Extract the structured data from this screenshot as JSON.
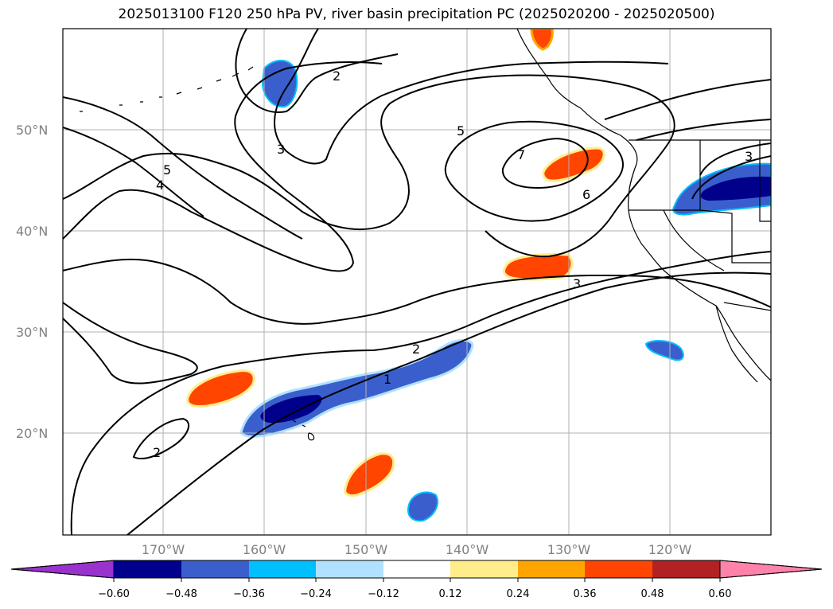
{
  "title": "2025013100 F120 250 hPa PV, river basin precipitation PC (2025020200 - 2025020500)",
  "map": {
    "lat_labels": [
      "50°N",
      "40°N",
      "30°N",
      "20°N"
    ],
    "lon_labels": [
      "170°W",
      "160°W",
      "150°W",
      "140°W",
      "130°W",
      "120°W"
    ],
    "contour_labels": [
      "2",
      "3",
      "5",
      "4",
      "7",
      "6",
      "3",
      "2",
      "1",
      "2",
      "3"
    ],
    "colors": {
      "contour": "#000000",
      "grid": "#b0b0b0",
      "coast": "#000000"
    }
  },
  "colorbar": {
    "ticks": [
      "−0.60",
      "−0.48",
      "−0.36",
      "−0.24",
      "−0.12",
      "0.12",
      "0.24",
      "0.36",
      "0.48",
      "0.60"
    ],
    "colors": [
      "#9a32cd",
      "#00008b",
      "#3a5fcd",
      "#00bfff",
      "#b0e2ff",
      "#ffffff",
      "#ffec8b",
      "#ffa500",
      "#ff4500",
      "#b22222",
      "#ff82ab"
    ]
  }
}
